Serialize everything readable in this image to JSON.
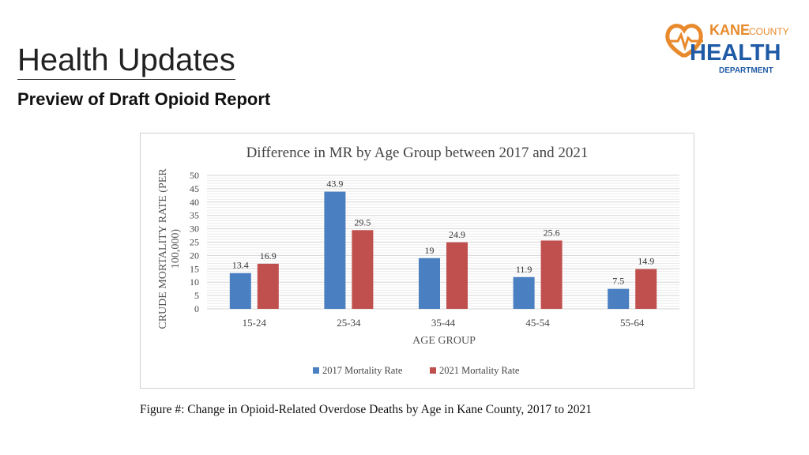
{
  "slide": {
    "title": "Health Updates",
    "subtitle": "Preview of Draft Opioid Report",
    "caption": "Figure #: Change in Opioid-Related Overdose Deaths by Age in Kane County, 2017 to 2021"
  },
  "logo": {
    "line1": "KANE",
    "line1b": "COUNTY",
    "line2": "HEALTH",
    "line3": "DEPARTMENT",
    "orange": "#e8892b",
    "blue": "#1f5aa6"
  },
  "chart_data": {
    "type": "bar",
    "title": "Difference in MR by Age Group between 2017 and 2021",
    "xlabel": "AGE GROUP",
    "ylabel": "CRUDE MORTALITY RATE (PER 100,000)",
    "categories": [
      "15-24",
      "25-34",
      "35-44",
      "45-54",
      "55-64"
    ],
    "ylim": [
      0,
      50
    ],
    "yticks": [
      0,
      5,
      10,
      15,
      20,
      25,
      30,
      35,
      40,
      45,
      50
    ],
    "legend_position": "bottom",
    "series": [
      {
        "name": "2017 Mortality Rate",
        "color": "#4a7fc1",
        "values": [
          13.4,
          43.9,
          19,
          11.9,
          7.5
        ]
      },
      {
        "name": "2021 Mortality Rate",
        "color": "#c0504d",
        "values": [
          16.9,
          29.5,
          24.9,
          25.6,
          14.9
        ]
      }
    ]
  }
}
